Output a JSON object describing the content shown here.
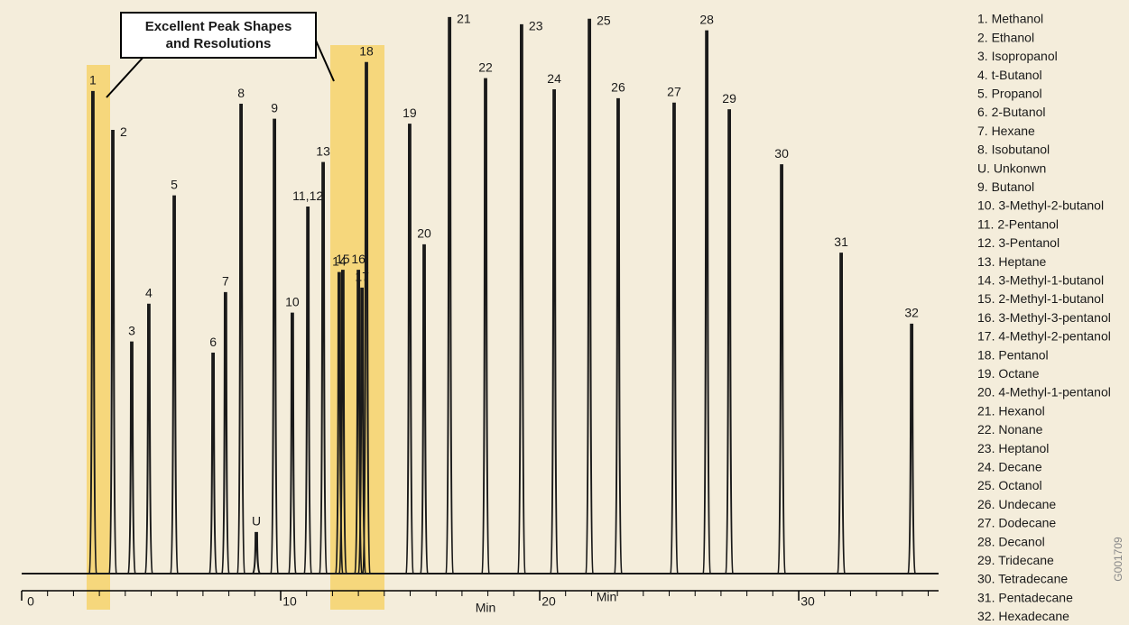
{
  "chart_data": {
    "type": "chromatogram",
    "annotation": [
      "Excellent Peak Shapes",
      "and Resolutions"
    ],
    "x_labels": [
      "Min",
      "Min"
    ],
    "figure_id": "G001709",
    "color": "#1a1a1a",
    "highlight_color": "#f6d77c",
    "xlim": [
      0,
      35.4
    ],
    "ylim": [
      0,
      100
    ],
    "xticks": [
      0,
      10,
      20,
      30
    ],
    "xminorticks": [
      1,
      2,
      3,
      4,
      5,
      6,
      7,
      8,
      9,
      11,
      12,
      13,
      14,
      15,
      16,
      17,
      18,
      19,
      21,
      22,
      23,
      24,
      25,
      26,
      27,
      28,
      29,
      31,
      32,
      33,
      34,
      35
    ],
    "peak_labels": [
      "1",
      "2",
      "3",
      "4",
      "5",
      "6",
      "7",
      "8",
      "U",
      "9",
      "10",
      "11,12",
      "13",
      "14",
      "15",
      "16",
      "17",
      "18",
      "19",
      "20",
      "21",
      "22",
      "23",
      "24",
      "25",
      "26",
      "27",
      "28",
      "29",
      "30",
      "31",
      "32"
    ],
    "x": [
      2.75,
      3.52,
      4.25,
      4.91,
      5.89,
      7.39,
      7.87,
      8.47,
      9.06,
      9.76,
      10.45,
      11.05,
      11.64,
      12.26,
      12.4,
      13.0,
      13.14,
      13.31,
      14.98,
      15.54,
      16.52,
      17.91,
      19.3,
      20.56,
      21.92,
      23.03,
      25.19,
      26.45,
      27.32,
      29.34,
      31.64,
      34.36
    ],
    "values": [
      86.7,
      79.7,
      41.6,
      48.4,
      67.9,
      39.6,
      50.5,
      84.4,
      7.3,
      81.7,
      46.8,
      65.9,
      73.9,
      54.1,
      54.5,
      54.5,
      51.3,
      91.9,
      80.8,
      59.1,
      100,
      89.0,
      98.7,
      87.0,
      99.7,
      85.4,
      84.6,
      97.6,
      83.4,
      73.5,
      57.6,
      44.8
    ],
    "legend": [
      "1. Methanol",
      "2. Ethanol",
      "3. Isopropanol",
      "4. t-Butanol",
      "5. Propanol",
      "6. 2-Butanol",
      "7. Hexane",
      "8. Isobutanol",
      "U. Unkonwn",
      "9. Butanol",
      "10. 3-Methyl-2-butanol",
      "11. 2-Pentanol",
      "12. 3-Pentanol",
      "13. Heptane",
      "14. 3-Methyl-1-butanol",
      "15. 2-Methyl-1-butanol",
      "16. 3-Methyl-3-pentanol",
      "17. 4-Methyl-2-pentanol",
      "18. Pentanol",
      "19. Octane",
      "20. 4-Methyl-1-pentanol",
      "21. Hexanol",
      "22. Nonane",
      "23. Heptanol",
      "24. Decane",
      "25. Octanol",
      "26. Undecane",
      "27. Dodecane",
      "28. Decanol",
      "29. Tridecane",
      "30. Tetradecane",
      "31. Pentadecane",
      "32. Hexadecane"
    ]
  }
}
